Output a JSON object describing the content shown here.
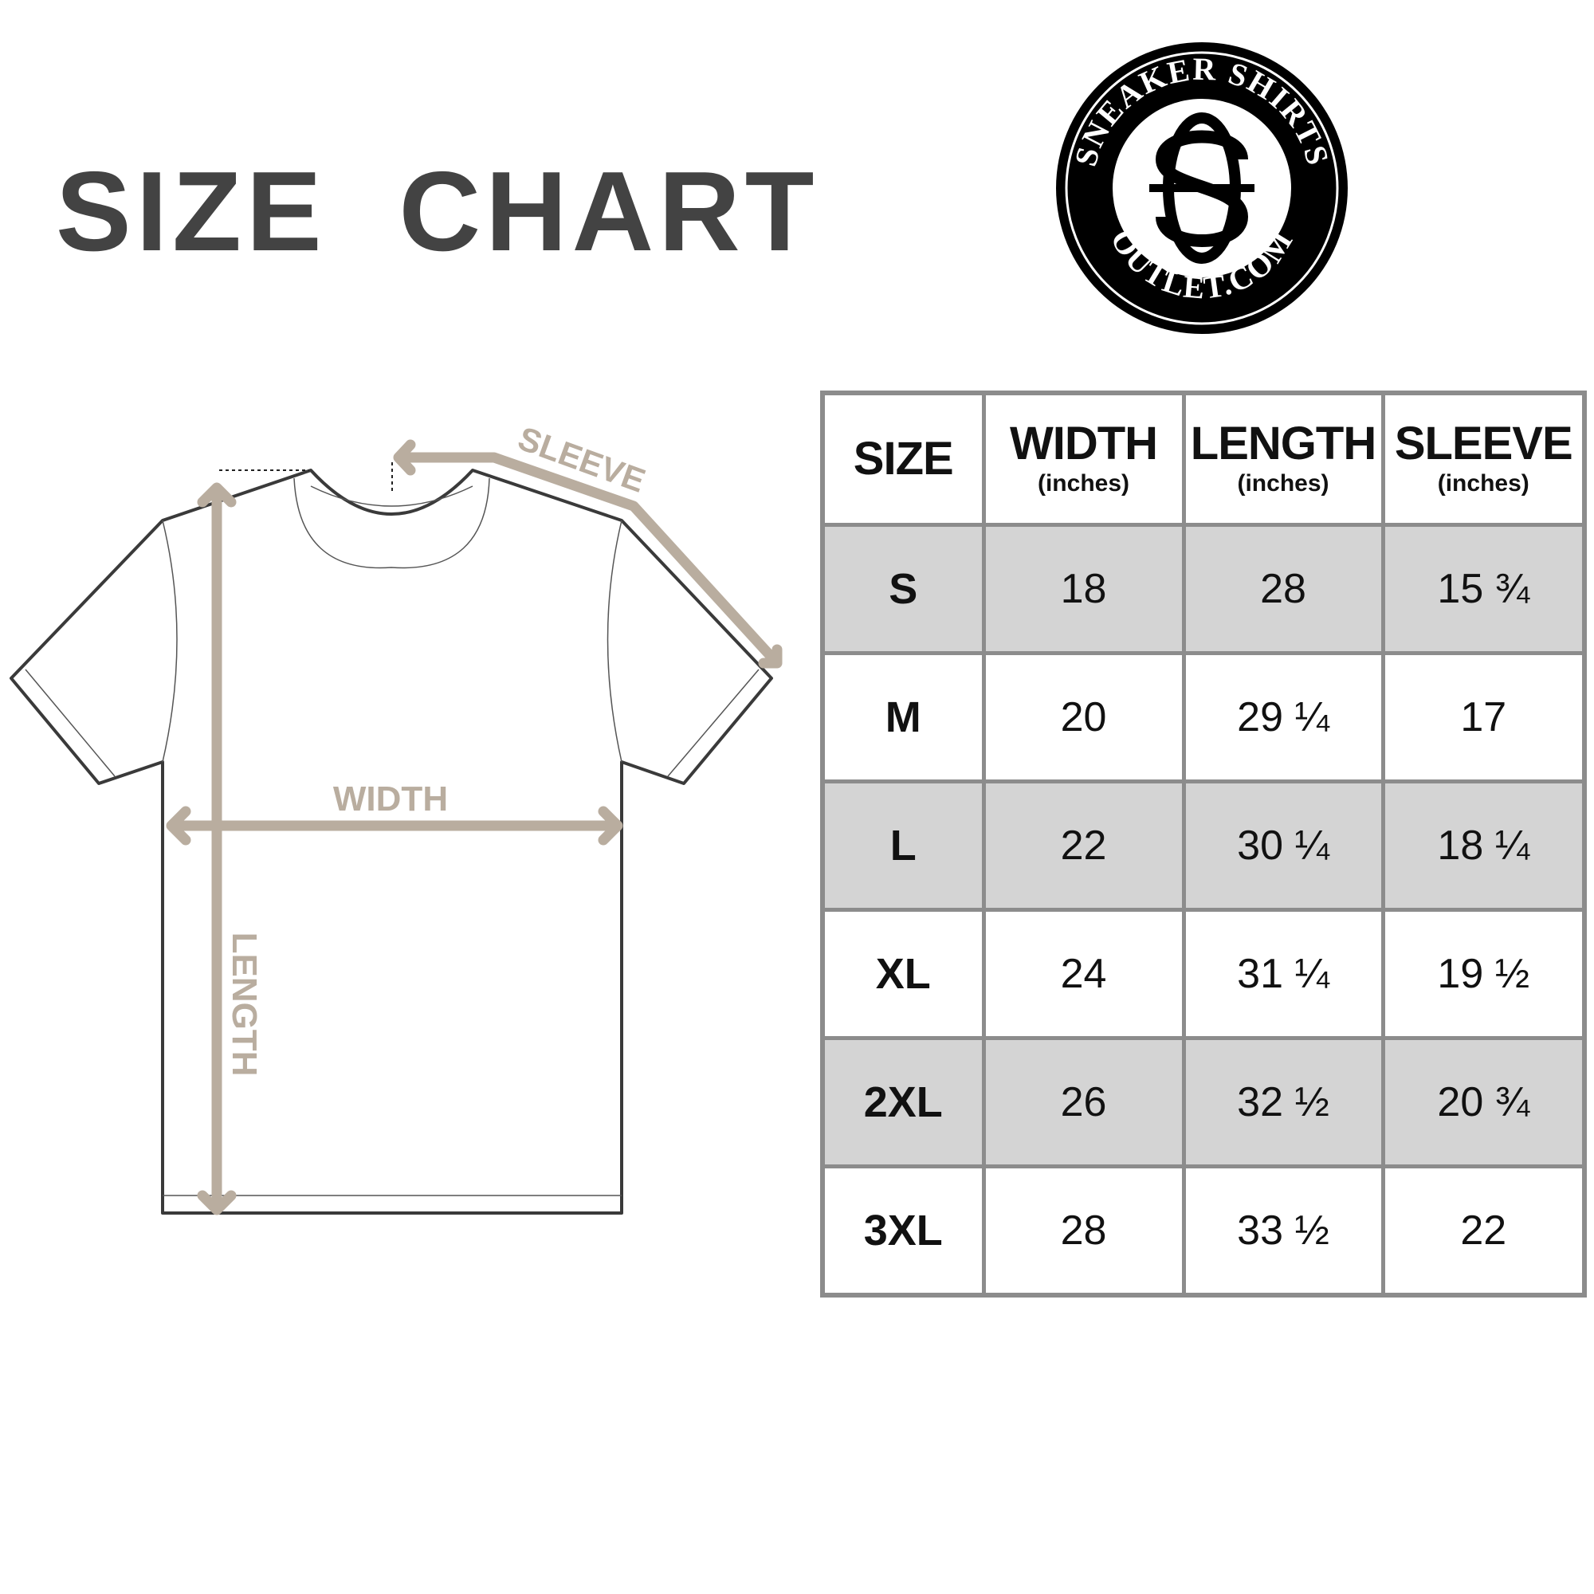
{
  "title": "SIZE  CHART",
  "logo": {
    "top_text": "SNEAKER SHIRTS",
    "bottom_text": "OUTLET.COM",
    "monogram": "SO"
  },
  "diagram": {
    "sleeve_label": "SLEEVE",
    "width_label": "WIDTH",
    "length_label": "LENGTH",
    "arrow_color": "#b9ad9f",
    "outline_color": "#3a3a3a"
  },
  "table": {
    "headers": [
      {
        "label": "SIZE",
        "unit": ""
      },
      {
        "label": "WIDTH",
        "unit": "(inches)"
      },
      {
        "label": "LENGTH",
        "unit": "(inches)"
      },
      {
        "label": "SLEEVE",
        "unit": "(inches)"
      }
    ],
    "rows": [
      [
        "S",
        "18",
        "28",
        "15 ¾"
      ],
      [
        "M",
        "20",
        "29 ¼",
        "17"
      ],
      [
        "L",
        "22",
        "30 ¼",
        "18 ¼"
      ],
      [
        "XL",
        "24",
        "31 ¼",
        "19 ½"
      ],
      [
        "2XL",
        "26",
        "32 ½",
        "20 ¾"
      ],
      [
        "3XL",
        "28",
        "33 ½",
        "22"
      ]
    ],
    "shade_color": "#d4d4d4",
    "border_color": "#8c8c8c"
  }
}
